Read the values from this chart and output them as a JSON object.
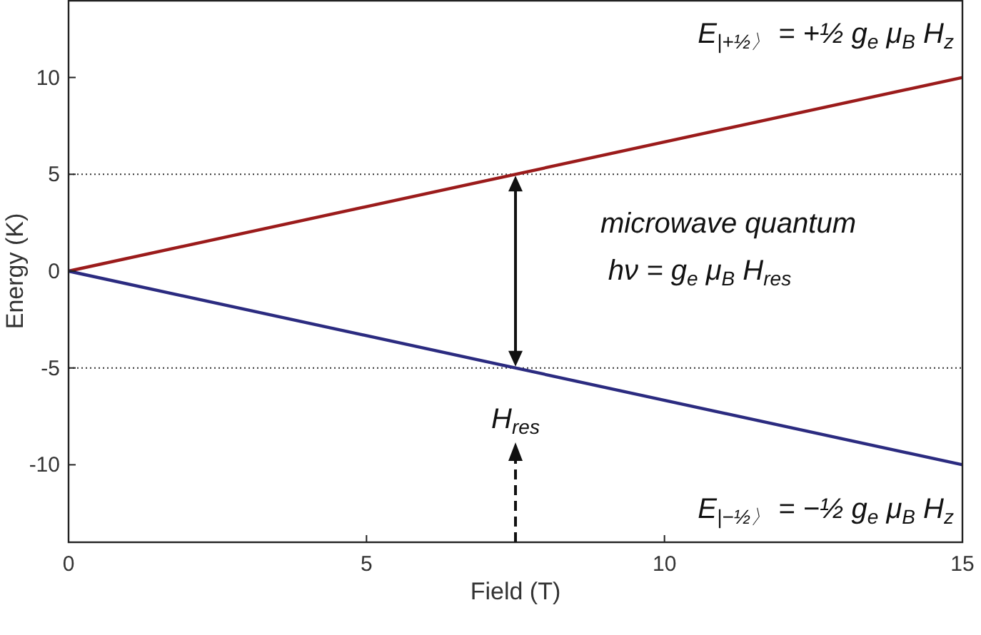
{
  "chart_data": {
    "type": "line",
    "xlabel": "Field (T)",
    "ylabel": "Energy (K)",
    "xlim": [
      0,
      15
    ],
    "ylim": [
      -14,
      14
    ],
    "xticks": [
      0,
      5,
      10,
      15
    ],
    "yticks": [
      -10,
      -5,
      0,
      5,
      10
    ],
    "grid": false,
    "line_style": "solid",
    "x": [
      0,
      15
    ],
    "series": [
      {
        "color": "#9b1b1b",
        "values": [
          0,
          10
        ]
      },
      {
        "color": "#2b2b80",
        "values": [
          0,
          -10
        ]
      }
    ],
    "ref_lines": [
      {
        "axis": "y",
        "value": 5,
        "line_style": "dotted",
        "color": "#333333"
      },
      {
        "axis": "y",
        "value": -5,
        "line_style": "dotted",
        "color": "#333333"
      }
    ],
    "annotations": [
      "E$_{|+½〉}$ = +½ g$_{e}$ μ$_{B}$ H$_{z}$",
      "microwave quantum",
      "hν = g$_{e}$ μ$_{B}$ H$_{res}$",
      "H$_{res}$",
      "E$_{|−½〉}$ = −½ g$_{e}$ μ$_{B}$ H$_{z}$"
    ]
  }
}
